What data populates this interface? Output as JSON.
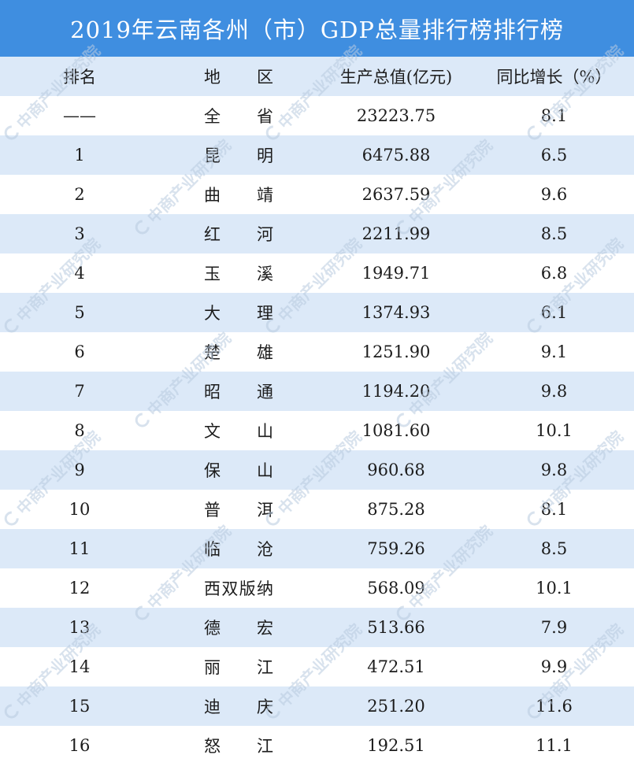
{
  "colors": {
    "title_bar": "#3f8ee0",
    "title_text": "#ffffff",
    "stripe": "#dce9f8",
    "text": "#1c1c1c",
    "watermark": "#b9cbe0"
  },
  "watermark": {
    "text": "中商产业研究院",
    "icon": "company-logo-icon"
  },
  "chart_data": {
    "type": "table",
    "title": "2019年云南各州（市）GDP总量排行榜排行榜",
    "columns": [
      "排名",
      "地区",
      "生产总值(亿元)",
      "同比增长（%）"
    ],
    "rows": [
      [
        "——",
        "全省",
        "23223.75",
        "8.1"
      ],
      [
        "1",
        "昆明",
        "6475.88",
        "6.5"
      ],
      [
        "2",
        "曲靖",
        "2637.59",
        "9.6"
      ],
      [
        "3",
        "红河",
        "2211.99",
        "8.5"
      ],
      [
        "4",
        "玉溪",
        "1949.71",
        "6.8"
      ],
      [
        "5",
        "大理",
        "1374.93",
        "6.1"
      ],
      [
        "6",
        "楚雄",
        "1251.90",
        "9.1"
      ],
      [
        "7",
        "昭通",
        "1194.20",
        "9.8"
      ],
      [
        "8",
        "文山",
        "1081.60",
        "10.1"
      ],
      [
        "9",
        "保山",
        "960.68",
        "9.8"
      ],
      [
        "10",
        "普洱",
        "875.28",
        "8.1"
      ],
      [
        "11",
        "临沧",
        "759.26",
        "8.5"
      ],
      [
        "12",
        "西双版纳",
        "568.09",
        "10.1"
      ],
      [
        "13",
        "德宏",
        "513.66",
        "7.9"
      ],
      [
        "14",
        "丽江",
        "472.51",
        "9.9"
      ],
      [
        "15",
        "迪庆",
        "251.20",
        "11.6"
      ],
      [
        "16",
        "怒江",
        "192.51",
        "11.1"
      ]
    ]
  }
}
